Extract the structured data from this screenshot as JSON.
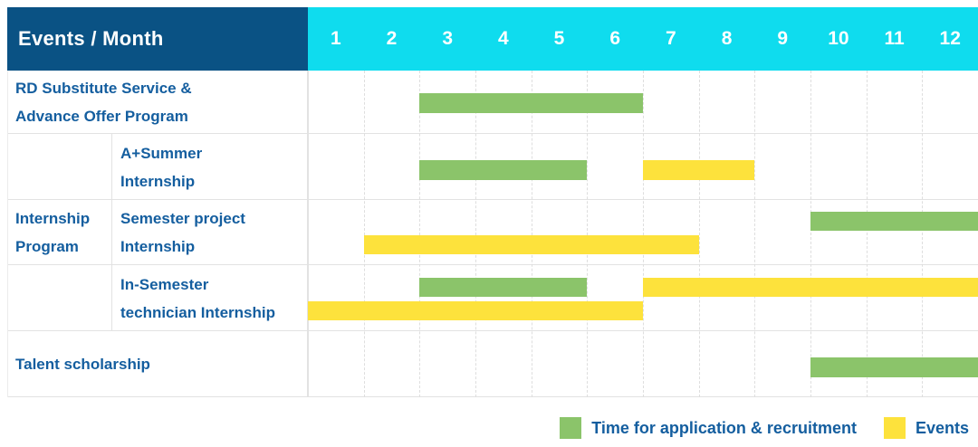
{
  "header": {
    "corner_label": "Events / Month",
    "months": [
      "1",
      "2",
      "3",
      "4",
      "5",
      "6",
      "7",
      "8",
      "9",
      "10",
      "11",
      "12"
    ]
  },
  "row_group": {
    "label": "Internship Program",
    "label_lines": [
      "Internship",
      "Program"
    ]
  },
  "colors": {
    "header_bg": "#0a5284",
    "months_bg": "#0fdcee",
    "green": "#8bc46a",
    "yellow": "#fde23c",
    "label_text": "#145e9f",
    "grid": "#e2e2e2"
  },
  "legend": {
    "position": "bottom-right",
    "entries": [
      {
        "id": "application",
        "label": "Time for application & recruitment",
        "color": "#8bc46a"
      },
      {
        "id": "events",
        "label": "Events",
        "color": "#fde23c"
      }
    ]
  },
  "chart_data": {
    "type": "bar",
    "variant": "gantt-timeline",
    "title": "Events / Month",
    "x_axis": {
      "label": "Month",
      "ticks": [
        "1",
        "2",
        "3",
        "4",
        "5",
        "6",
        "7",
        "8",
        "9",
        "10",
        "11",
        "12"
      ],
      "range": [
        1,
        12
      ]
    },
    "series_legend": [
      {
        "name": "Time for application & recruitment",
        "color": "#8bc46a"
      },
      {
        "name": "Events",
        "color": "#fde23c"
      }
    ],
    "rows": [
      {
        "label": "RD Substitute Service & Advance Offer Program",
        "label_lines": [
          "RD Substitute Service &",
          "Advance Offer Program"
        ],
        "group": null,
        "bars": [
          {
            "type": "application",
            "start": 3,
            "end": 6,
            "line": 1
          }
        ]
      },
      {
        "label": "A+Summer Internship",
        "label_lines": [
          "A+Summer",
          "Internship"
        ],
        "group": "Internship Program",
        "bars": [
          {
            "type": "application",
            "start": 3,
            "end": 5,
            "line": 1
          },
          {
            "type": "events",
            "start": 7,
            "end": 8,
            "line": 1
          }
        ]
      },
      {
        "label": "Semester project Internship",
        "label_lines": [
          "Semester project",
          "Internship"
        ],
        "group": "Internship Program",
        "bars": [
          {
            "type": "application",
            "start": 10,
            "end": 12,
            "line": 1
          },
          {
            "type": "events",
            "start": 2,
            "end": 7,
            "line": 2
          }
        ]
      },
      {
        "label": "In-Semester technician Internship",
        "label_lines": [
          "In-Semester",
          "technician Internship"
        ],
        "group": "Internship Program",
        "bars": [
          {
            "type": "application",
            "start": 3,
            "end": 5,
            "line": 1
          },
          {
            "type": "events",
            "start": 7,
            "end": 12,
            "line": 1
          },
          {
            "type": "events",
            "start": 1,
            "end": 6,
            "line": 2
          }
        ]
      },
      {
        "label": "Talent scholarship",
        "label_lines": [
          "Talent scholarship"
        ],
        "group": null,
        "bars": [
          {
            "type": "application",
            "start": 10,
            "end": 12,
            "line": 1
          }
        ]
      }
    ]
  }
}
